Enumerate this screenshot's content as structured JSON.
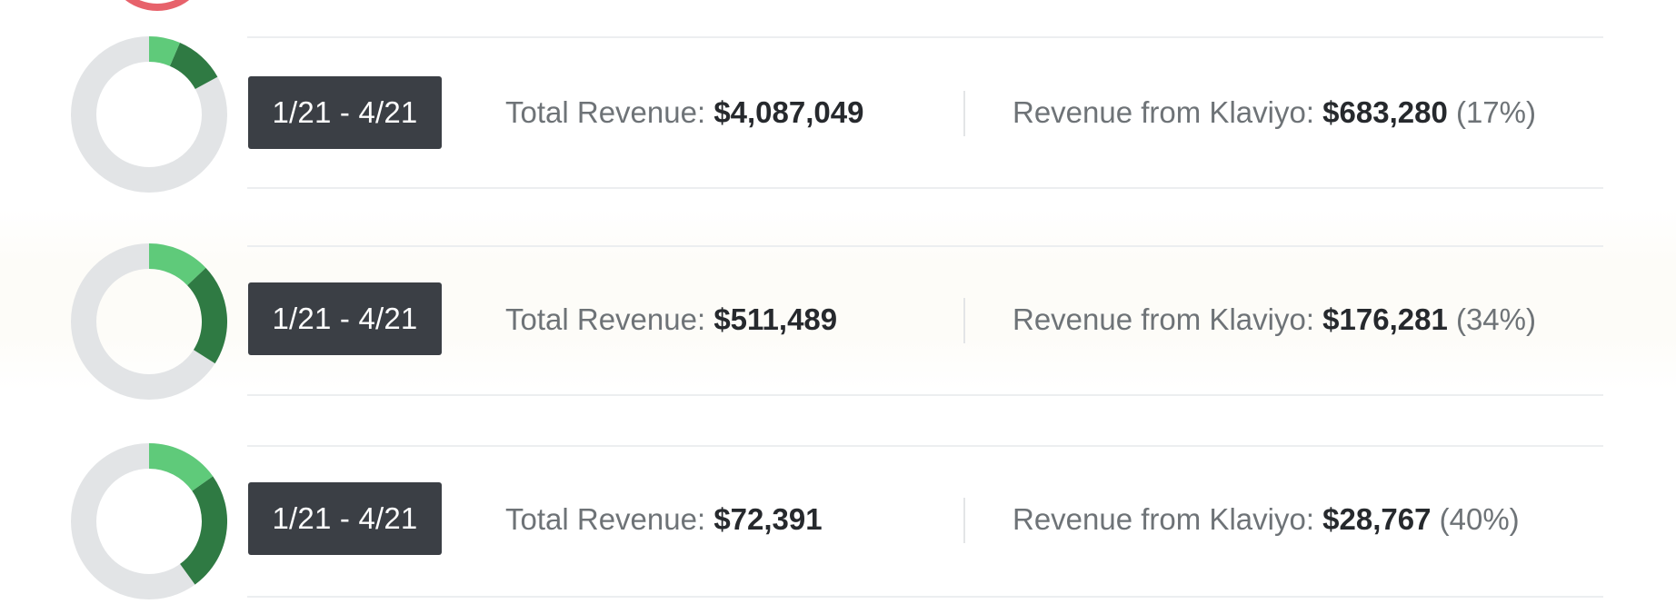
{
  "rows": [
    {
      "date_range": "1/21 - 4/21",
      "total_label": "Total Revenue:",
      "total_value": "$4,087,049",
      "klaviyo_label": "Revenue from Klaviyo:",
      "klaviyo_value": "$683,280",
      "klaviyo_pct": "(17%)",
      "share": 0.17
    },
    {
      "date_range": "1/21 - 4/21",
      "total_label": "Total Revenue:",
      "total_value": "$511,489",
      "klaviyo_label": "Revenue from Klaviyo:",
      "klaviyo_value": "$176,281",
      "klaviyo_pct": "(34%)",
      "share": 0.34
    },
    {
      "date_range": "1/21 - 4/21",
      "total_label": "Total Revenue:",
      "total_value": "$72,391",
      "klaviyo_label": "Revenue from Klaviyo:",
      "klaviyo_value": "$28,767",
      "klaviyo_pct": "(40%)",
      "share": 0.4
    }
  ],
  "colors": {
    "donut_track": "#e2e4e6",
    "donut_light": "#5fca7a",
    "donut_dark": "#2f7a43",
    "badge_bg": "#3b3f45",
    "top_badge_ring": "#e7626b"
  }
}
